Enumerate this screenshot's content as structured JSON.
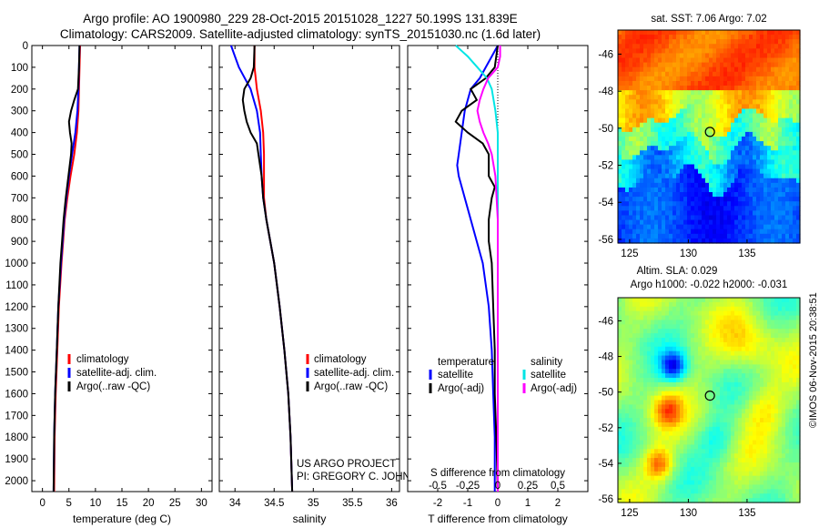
{
  "titles": {
    "line1": "Argo profile: AO 1900980_229 28-Oct-2015 20151028_1227 50.199S 131.839E",
    "line2": "Climatology: CARS2009. Satellite-adjusted climatology: synTS_20151030.nc (1.6d later)"
  },
  "depth_ticks": [
    0,
    100,
    200,
    300,
    400,
    500,
    600,
    700,
    800,
    900,
    1000,
    1100,
    1200,
    1300,
    1400,
    1500,
    1600,
    1700,
    1800,
    1900,
    2000
  ],
  "colors": {
    "climatology": "#ff0000",
    "satellite": "#0000ff",
    "argo": "#000000",
    "sal_satellite": "#00e5e5",
    "sal_argo": "#ff00ff"
  },
  "chart_data": [
    {
      "type": "line",
      "xlabel": "temperature (deg C)",
      "ylim": [
        2050,
        0
      ],
      "xlim": [
        -2,
        32
      ],
      "xticks": [
        0,
        5,
        10,
        15,
        20,
        25,
        30
      ],
      "legend_position": "lower-right",
      "legend": [
        "climatology",
        "satellite-adj. clim.",
        "Argo(..raw -QC)"
      ],
      "series": [
        {
          "name": "climatology",
          "depth": [
            0,
            100,
            200,
            300,
            400,
            500,
            600,
            700,
            800,
            900,
            1000,
            1200,
            1400,
            1600,
            1800,
            2050
          ],
          "values": [
            7.1,
            7.0,
            6.9,
            6.8,
            6.5,
            6.0,
            5.3,
            4.7,
            4.2,
            3.9,
            3.6,
            3.1,
            2.8,
            2.5,
            2.3,
            2.2
          ]
        },
        {
          "name": "satellite-adj. clim.",
          "depth": [
            0,
            100,
            200,
            300,
            400,
            500,
            600,
            700,
            800,
            900,
            1000,
            1200,
            1400,
            1600,
            1800,
            2050
          ],
          "values": [
            7.0,
            6.9,
            6.8,
            6.6,
            6.2,
            5.6,
            5.0,
            4.5,
            4.1,
            3.8,
            3.5,
            3.0,
            2.7,
            2.4,
            2.2,
            2.1
          ]
        },
        {
          "name": "Argo(..raw -QC)",
          "depth": [
            0,
            100,
            200,
            250,
            300,
            350,
            400,
            450,
            500,
            600,
            700,
            800,
            900,
            1000,
            1200,
            1400,
            1600,
            1800,
            2050
          ],
          "values": [
            7.0,
            6.9,
            6.7,
            6.0,
            5.4,
            5.0,
            5.2,
            5.5,
            5.4,
            4.9,
            4.4,
            4.0,
            3.7,
            3.4,
            3.0,
            2.7,
            2.4,
            2.2,
            2.1
          ]
        }
      ]
    },
    {
      "type": "line",
      "xlabel": "salinity",
      "ylim": [
        2050,
        0
      ],
      "xlim": [
        33.8,
        36.1
      ],
      "xticks": [
        34,
        34.5,
        35,
        35.5,
        36
      ],
      "legend_position": "lower-right",
      "legend": [
        "climatology",
        "satellite-adj. clim.",
        "Argo(..raw -QC)"
      ],
      "series": [
        {
          "name": "climatology",
          "depth": [
            0,
            100,
            200,
            300,
            400,
            500,
            600,
            700,
            800,
            900,
            1000,
            1200,
            1400,
            1600,
            1800,
            2050
          ],
          "values": [
            34.25,
            34.25,
            34.28,
            34.33,
            34.36,
            34.37,
            34.37,
            34.37,
            34.4,
            34.45,
            34.5,
            34.57,
            34.63,
            34.68,
            34.71,
            34.73
          ]
        },
        {
          "name": "satellite-adj. clim.",
          "depth": [
            0,
            50,
            100,
            200,
            300,
            400,
            500,
            600,
            700,
            800,
            900,
            1000,
            1200,
            1400,
            1600,
            1800,
            2050
          ],
          "values": [
            33.95,
            34.0,
            34.05,
            34.2,
            34.28,
            34.32,
            34.33,
            34.34,
            34.36,
            34.4,
            34.45,
            34.5,
            34.57,
            34.63,
            34.68,
            34.71,
            34.73
          ]
        },
        {
          "name": "Argo(..raw -QC)",
          "depth": [
            0,
            100,
            150,
            200,
            250,
            300,
            350,
            400,
            450,
            500,
            600,
            700,
            800,
            900,
            1000,
            1200,
            1400,
            1600,
            1800,
            2050
          ],
          "values": [
            34.25,
            34.24,
            34.2,
            34.12,
            34.1,
            34.12,
            34.15,
            34.2,
            34.28,
            34.3,
            34.34,
            34.36,
            34.4,
            34.45,
            34.5,
            34.57,
            34.63,
            34.68,
            34.71,
            34.73
          ]
        }
      ],
      "annotation": {
        "line1": "US ARGO PROJECT",
        "line2": "PI: GREGORY C. JOHNSON"
      }
    },
    {
      "type": "line",
      "xlabel": "T difference from climatology",
      "top_label": "S difference from climatology",
      "ylim": [
        2050,
        0
      ],
      "xlim": [
        -3,
        3
      ],
      "xticks": [
        -2,
        -1,
        0,
        1,
        2
      ],
      "xticklabels": [
        "-2",
        "-1",
        "0",
        "1",
        "2"
      ],
      "top_xticklabels": [
        "-0.5",
        "-0.25",
        "0",
        "0.25",
        "0.5"
      ],
      "legend_position": "lower-right",
      "legend_left_title": "temperature",
      "legend_right_title": "salinity",
      "legend_left": [
        "satellite",
        "Argo(-adj)"
      ],
      "legend_right": [
        "satellite",
        "Argo(-adj)"
      ],
      "series": [
        {
          "name": "satellite",
          "group": "temperature",
          "depth": [
            0,
            50,
            100,
            150,
            200,
            250,
            300,
            400,
            500,
            550,
            600,
            700,
            800,
            900,
            1000,
            1200,
            1400,
            1600,
            1800,
            2050
          ],
          "values": [
            0.0,
            -0.2,
            -0.4,
            -0.6,
            -0.9,
            -1.0,
            -1.1,
            -1.2,
            -1.3,
            -1.35,
            -1.3,
            -1.1,
            -0.9,
            -0.7,
            -0.5,
            -0.3,
            -0.2,
            -0.15,
            -0.1,
            -0.1
          ]
        },
        {
          "name": "Argo(-adj)",
          "group": "temperature",
          "depth": [
            0,
            100,
            150,
            200,
            250,
            300,
            350,
            400,
            450,
            500,
            600,
            650,
            700,
            800,
            900,
            1000,
            1200,
            1400,
            1600,
            1800,
            2050
          ],
          "values": [
            0.0,
            -0.1,
            -0.4,
            -0.9,
            -0.7,
            -1.2,
            -1.4,
            -1.0,
            -0.5,
            -0.3,
            -0.3,
            -0.1,
            -0.2,
            -0.3,
            -0.3,
            -0.2,
            -0.15,
            -0.1,
            -0.1,
            -0.05,
            0.0
          ]
        },
        {
          "name": "satellite",
          "group": "salinity",
          "depth": [
            0,
            50,
            100,
            150,
            200,
            300,
            400,
            500,
            600,
            800,
            1000,
            1400,
            1800,
            2050
          ],
          "values": [
            -0.35,
            -0.25,
            -0.17,
            -0.09,
            -0.05,
            -0.02,
            0.0,
            0.0,
            0.0,
            0.0,
            0.0,
            0.0,
            0.0,
            0.0
          ]
        },
        {
          "name": "Argo(-adj)",
          "group": "salinity",
          "depth": [
            0,
            50,
            100,
            150,
            200,
            250,
            300,
            350,
            400,
            450,
            500,
            600,
            800,
            1000,
            1400,
            1800,
            2050
          ],
          "values": [
            0.02,
            0.02,
            0.0,
            -0.08,
            -0.12,
            -0.15,
            -0.17,
            -0.15,
            -0.12,
            -0.08,
            -0.05,
            -0.02,
            0.0,
            0.0,
            0.0,
            0.0,
            0.0
          ]
        }
      ]
    },
    {
      "type": "heatmap",
      "title": "sat. SST: 7.06 Argo: 7.02",
      "xlim": [
        124,
        139.5
      ],
      "ylim": [
        -56.2,
        -44.7
      ],
      "xticks": [
        125,
        130,
        135
      ],
      "yticks": [
        -46,
        -48,
        -50,
        -52,
        -54,
        -56
      ],
      "marker": {
        "lon": 131.839,
        "lat": -50.199
      }
    },
    {
      "type": "heatmap",
      "title": "Altim. SLA: 0.029",
      "subtitle": "Argo h1000: -0.022 h2000: -0.031",
      "xlim": [
        124,
        139.5
      ],
      "ylim": [
        -56.2,
        -44.7
      ],
      "xticks": [
        125,
        130,
        135
      ],
      "yticks": [
        -46,
        -48,
        -50,
        -52,
        -54,
        -56
      ],
      "marker": {
        "lon": 131.839,
        "lat": -50.199
      }
    }
  ],
  "stamp": "©IMOS 06-Nov-2015 20:38:51"
}
